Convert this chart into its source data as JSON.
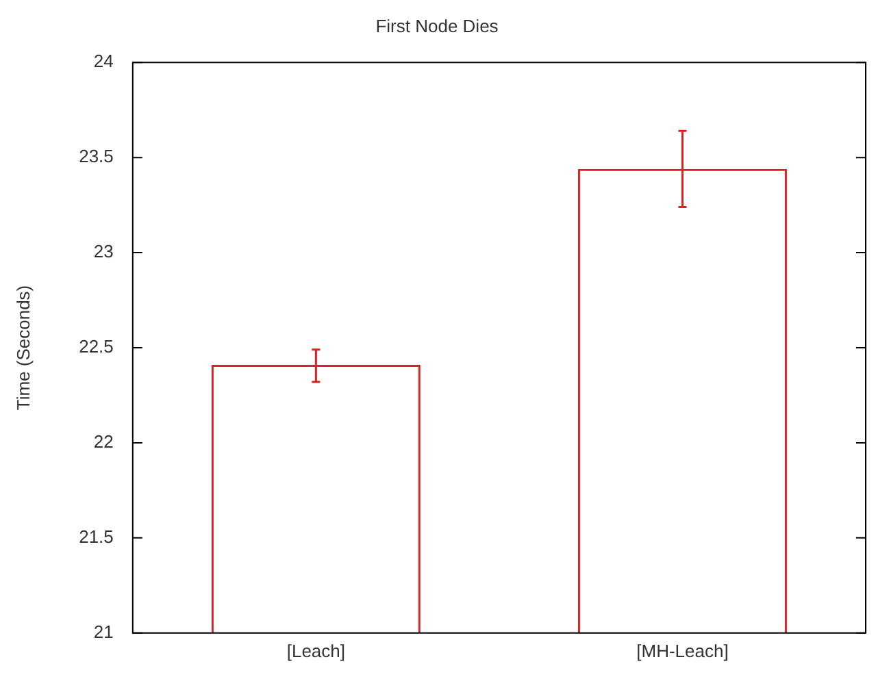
{
  "chart_data": {
    "type": "bar",
    "title": "First Node Dies",
    "ylabel": "Time (Seconds)",
    "categories": [
      "[Leach]",
      "[MH-Leach]"
    ],
    "values": [
      22.41,
      23.44
    ],
    "errors": [
      [
        22.32,
        22.49
      ],
      [
        23.24,
        23.64
      ]
    ],
    "color": "#dd2222",
    "ylim": [
      21,
      24
    ],
    "yticks": [
      21,
      21.5,
      22,
      22.5,
      23,
      23.5,
      24
    ],
    "grid": false,
    "legend": false
  }
}
